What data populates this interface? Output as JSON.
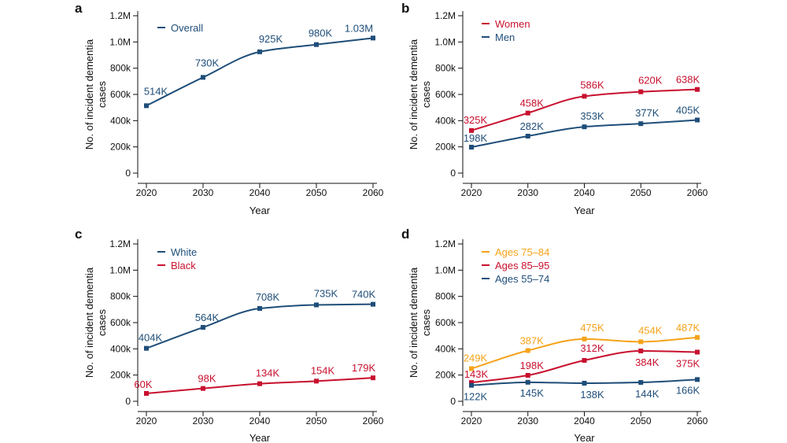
{
  "colors": {
    "navy": "#1f4e79",
    "red": "#c8102e",
    "orange": "#f5a31a",
    "axis": "#111111"
  },
  "chart_data": [
    {
      "panel": "a",
      "type": "line",
      "x": [
        2020,
        2030,
        2040,
        2050,
        2060
      ],
      "ylim": [
        0,
        1200000
      ],
      "yticks": [
        "0",
        "200k",
        "400k",
        "600k",
        "800k",
        "1.0M",
        "1.2M"
      ],
      "xlabel": "Year",
      "ylabel": [
        "No. of incident dementia",
        "cases"
      ],
      "legend_position": "top-left",
      "series": [
        {
          "name": "Overall",
          "color": "#1f4e79",
          "values": [
            514000,
            730000,
            925000,
            980000,
            1030000
          ],
          "labels": [
            "514K",
            "730K",
            "925K",
            "980K",
            "1.03M"
          ],
          "label_pos": "above"
        }
      ]
    },
    {
      "panel": "b",
      "type": "line",
      "x": [
        2020,
        2030,
        2040,
        2050,
        2060
      ],
      "ylim": [
        0,
        1200000
      ],
      "yticks": [
        "0",
        "200k",
        "400k",
        "600k",
        "800k",
        "1.0M",
        "1.2M"
      ],
      "xlabel": "Year",
      "ylabel": [
        "No. of incident dementia",
        "cases"
      ],
      "legend_position": "top-left",
      "series": [
        {
          "name": "Women",
          "color": "#c8102e",
          "values": [
            325000,
            458000,
            586000,
            620000,
            638000
          ],
          "labels": [
            "325K",
            "458K",
            "586K",
            "620K",
            "638K"
          ],
          "label_pos": "above"
        },
        {
          "name": "Men",
          "color": "#1f4e79",
          "values": [
            198000,
            282000,
            353000,
            377000,
            405000
          ],
          "labels": [
            "198K",
            "282K",
            "353K",
            "377K",
            "405K"
          ],
          "label_pos": "above"
        }
      ]
    },
    {
      "panel": "c",
      "type": "line",
      "x": [
        2020,
        2030,
        2040,
        2050,
        2060
      ],
      "ylim": [
        0,
        1200000
      ],
      "yticks": [
        "0",
        "200k",
        "400k",
        "600k",
        "800k",
        "1.0M",
        "1.2M"
      ],
      "xlabel": "Year",
      "ylabel": [
        "No. of incident dementia",
        "cases"
      ],
      "legend_position": "top-left",
      "series": [
        {
          "name": "White",
          "color": "#1f4e79",
          "values": [
            404000,
            564000,
            708000,
            735000,
            740000
          ],
          "labels": [
            "404K",
            "564K",
            "708K",
            "735K",
            "740K"
          ],
          "label_pos": "above"
        },
        {
          "name": "Black",
          "color": "#c8102e",
          "values": [
            60000,
            98000,
            134000,
            154000,
            179000
          ],
          "labels": [
            "60K",
            "98K",
            "134K",
            "154K",
            "179K"
          ],
          "label_pos": "above"
        }
      ]
    },
    {
      "panel": "d",
      "type": "line",
      "x": [
        2020,
        2030,
        2040,
        2050,
        2060
      ],
      "ylim": [
        0,
        1200000
      ],
      "yticks": [
        "0",
        "200k",
        "400k",
        "600k",
        "800k",
        "1.0M",
        "1.2M"
      ],
      "xlabel": "Year",
      "ylabel": [
        "No. of incident dementia",
        "cases"
      ],
      "legend_position": "top-left",
      "series": [
        {
          "name": "Ages 75–84",
          "color": "#f5a31a",
          "values": [
            249000,
            387000,
            475000,
            454000,
            487000
          ],
          "labels": [
            "249K",
            "387K",
            "475K",
            "454K",
            "487K"
          ],
          "label_pos": "above"
        },
        {
          "name": "Ages 85–95",
          "color": "#c8102e",
          "values": [
            143000,
            198000,
            312000,
            384000,
            375000
          ],
          "labels": [
            "143K",
            "198K",
            "312K",
            "384K",
            "375K"
          ],
          "label_pos": "mixed"
        },
        {
          "name": "Ages 55–74",
          "color": "#1f4e79",
          "values": [
            122000,
            145000,
            138000,
            144000,
            166000
          ],
          "labels": [
            "122K",
            "145K",
            "138K",
            "144K",
            "166K"
          ],
          "label_pos": "below"
        }
      ]
    }
  ]
}
